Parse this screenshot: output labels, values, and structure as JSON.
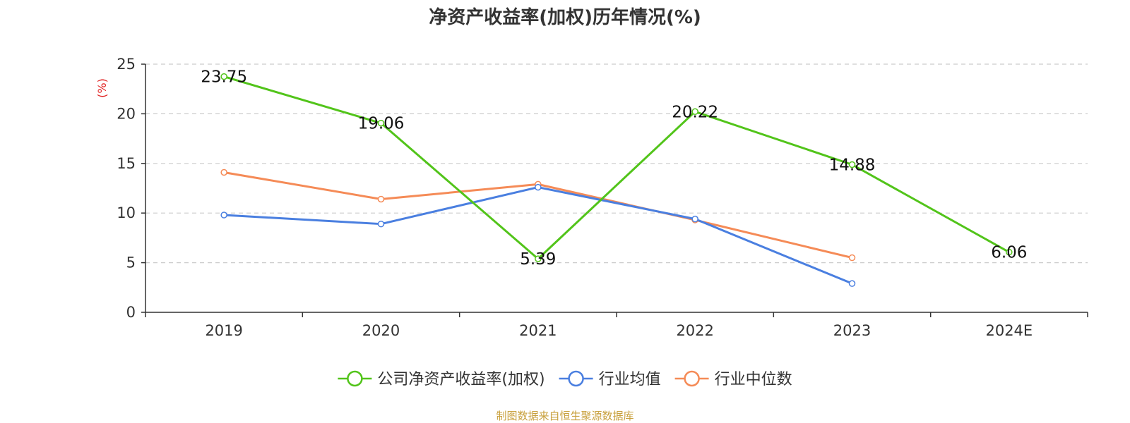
{
  "chart_data": {
    "type": "line",
    "title": "净资产收益率(加权)历年情况(%)",
    "ylabel": "(%)",
    "categories": [
      "2019",
      "2020",
      "2021",
      "2022",
      "2023",
      "2024E"
    ],
    "ylim": [
      0,
      25
    ],
    "yticks": [
      "0",
      "5",
      "10",
      "15",
      "20",
      "25"
    ],
    "grid": true,
    "legend_position": "bottom-center",
    "series": [
      {
        "name": "公司净资产收益率(加权)",
        "color": "#52c41a",
        "values": [
          23.75,
          19.06,
          5.39,
          20.22,
          14.88,
          6.06
        ],
        "labels": [
          "23.75",
          "19.06",
          "5.39",
          "20.22",
          "14.88",
          "6.06"
        ]
      },
      {
        "name": "行业均值",
        "color": "#4a7fe0",
        "values": [
          9.8,
          8.9,
          12.6,
          9.4,
          2.9,
          null
        ]
      },
      {
        "name": "行业中位数",
        "color": "#f58b57",
        "values": [
          14.1,
          11.4,
          12.9,
          9.3,
          5.5,
          null
        ]
      }
    ]
  },
  "footer": {
    "text": "制图数据来自恒生聚源数据库",
    "color": "#c8a03c"
  },
  "colors": {
    "ylabel": "#e02020",
    "axis": "#333333",
    "grid": "#cccccc",
    "text": "#333333"
  }
}
